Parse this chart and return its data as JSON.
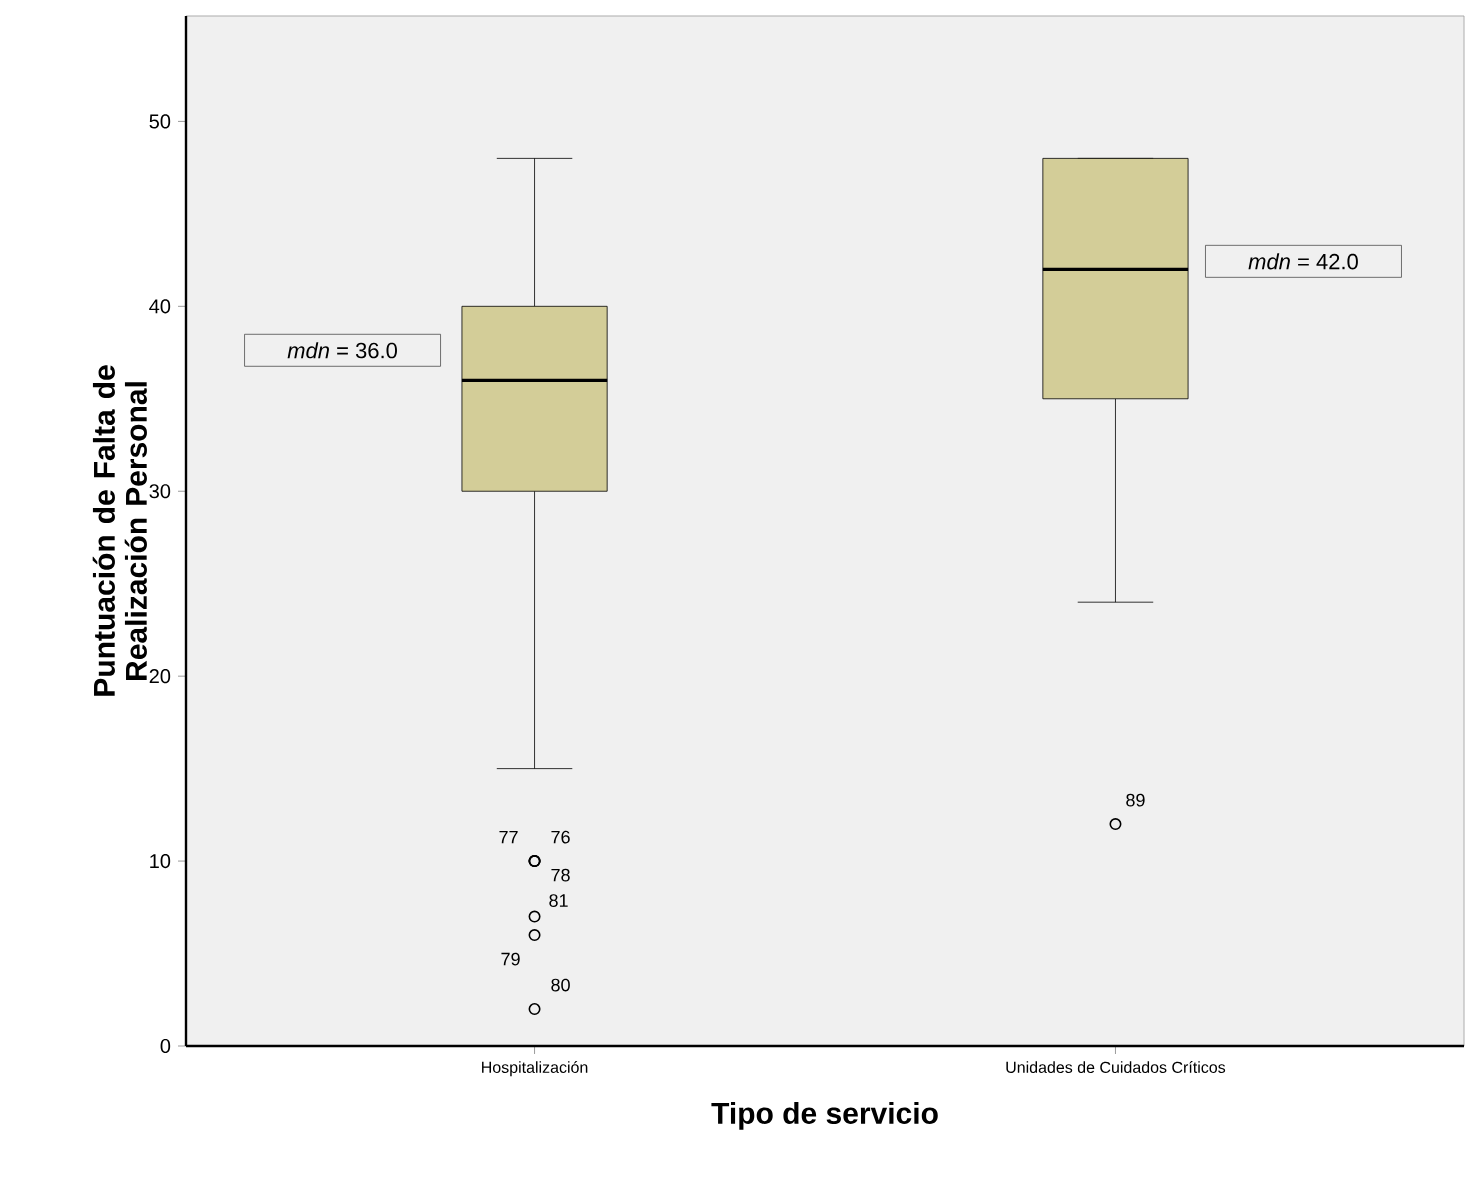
{
  "chart_data": {
    "type": "box",
    "xlabel": "Tipo de servicio",
    "ylabel": "Puntuación de Falta de Realización Personal",
    "categories": [
      "Hospitalización",
      "Unidades de Cuidados Críticos"
    ],
    "color": "#d3cd98",
    "ylim": [
      0,
      55.7
    ],
    "yticks": [
      0,
      10,
      20,
      30,
      40,
      50
    ],
    "boxes": [
      {
        "low": 15,
        "q1": 30,
        "median": 36,
        "q3": 40,
        "high": 48,
        "outliers": [
          10,
          10,
          10,
          7,
          6,
          2
        ]
      },
      {
        "low": 24,
        "q1": 35,
        "median": 42,
        "q3": 48,
        "high": 48,
        "outliers": [
          12
        ]
      }
    ],
    "annotations": [
      "*mdn* = 36.0",
      "*mdn* = 42.0",
      "77",
      "76",
      "78",
      "81",
      "79",
      "80",
      "89"
    ]
  }
}
